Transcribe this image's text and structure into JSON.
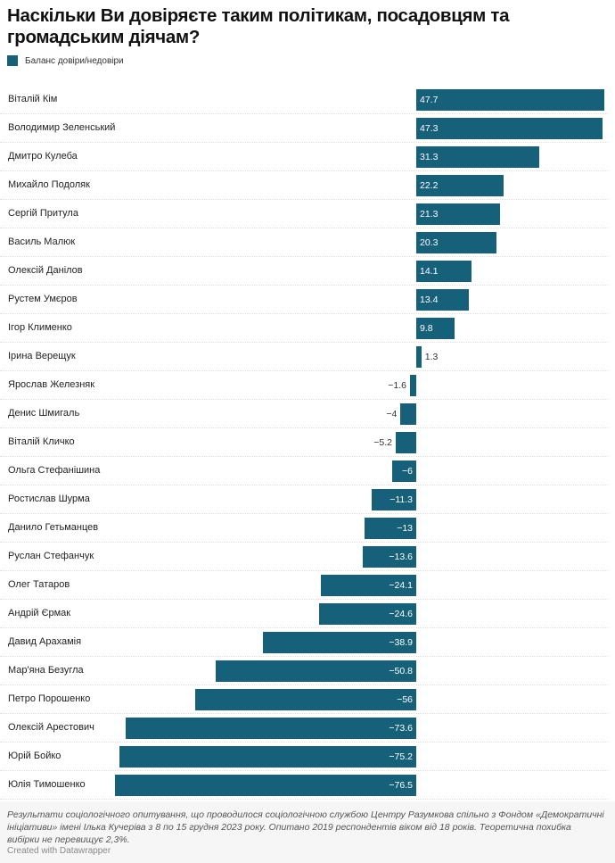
{
  "title": "Наскільки Ви довіряєте таким політикам, посадовцям та громадським діячам?",
  "colors": {
    "bar": "#17607a"
  },
  "chart_data": {
    "type": "bar",
    "orientation": "horizontal",
    "legend": "top-left",
    "series": [
      {
        "name": "Баланс довіри/недовіри",
        "values": [
          47.7,
          47.3,
          31.3,
          22.2,
          21.3,
          20.3,
          14.1,
          13.4,
          9.8,
          1.3,
          -1.6,
          -4,
          -5.2,
          -6,
          -11.3,
          -13,
          -13.6,
          -24.1,
          -24.6,
          -38.9,
          -50.8,
          -56,
          -73.6,
          -75.2,
          -76.5
        ]
      }
    ],
    "categories": [
      "Віталій Кім",
      "Володимир Зеленський",
      "Дмитро Кулеба",
      "Михайло Подоляк",
      "Сергій Притула",
      "Василь Малюк",
      "Олексій Данілов",
      "Рустем Умєров",
      "Ігор Клименко",
      "Ірина Верещук",
      "Ярослав Железняк",
      "Денис Шмигаль",
      "Віталій Кличко",
      "Ольга Стефанішина",
      "Ростислав Шурма",
      "Данило Гетьманцев",
      "Руслан Стефанчук",
      "Олег Татаров",
      "Андрій Єрмак",
      "Давид Арахамія",
      "Мар'яна Безугла",
      "Петро Порошенко",
      "Олексій Арестович",
      "Юрій Бойко",
      "Юлія Тимошенко"
    ],
    "xlim": [
      -76.5,
      47.7
    ]
  },
  "footer": {
    "note": "Результати соціологічного опитування, що проводилося соціологічною службою Центру Разумкова спільно з Фондом «Демократичні ініціативи» імені Ілька Кучеріва з 8 по 15 грудня 2023 року. Опитано 2019 респондентів віком від 18 років. Теоретична похибка вибірки не перевищує 2,3%.",
    "credit": "Created with Datawrapper"
  }
}
